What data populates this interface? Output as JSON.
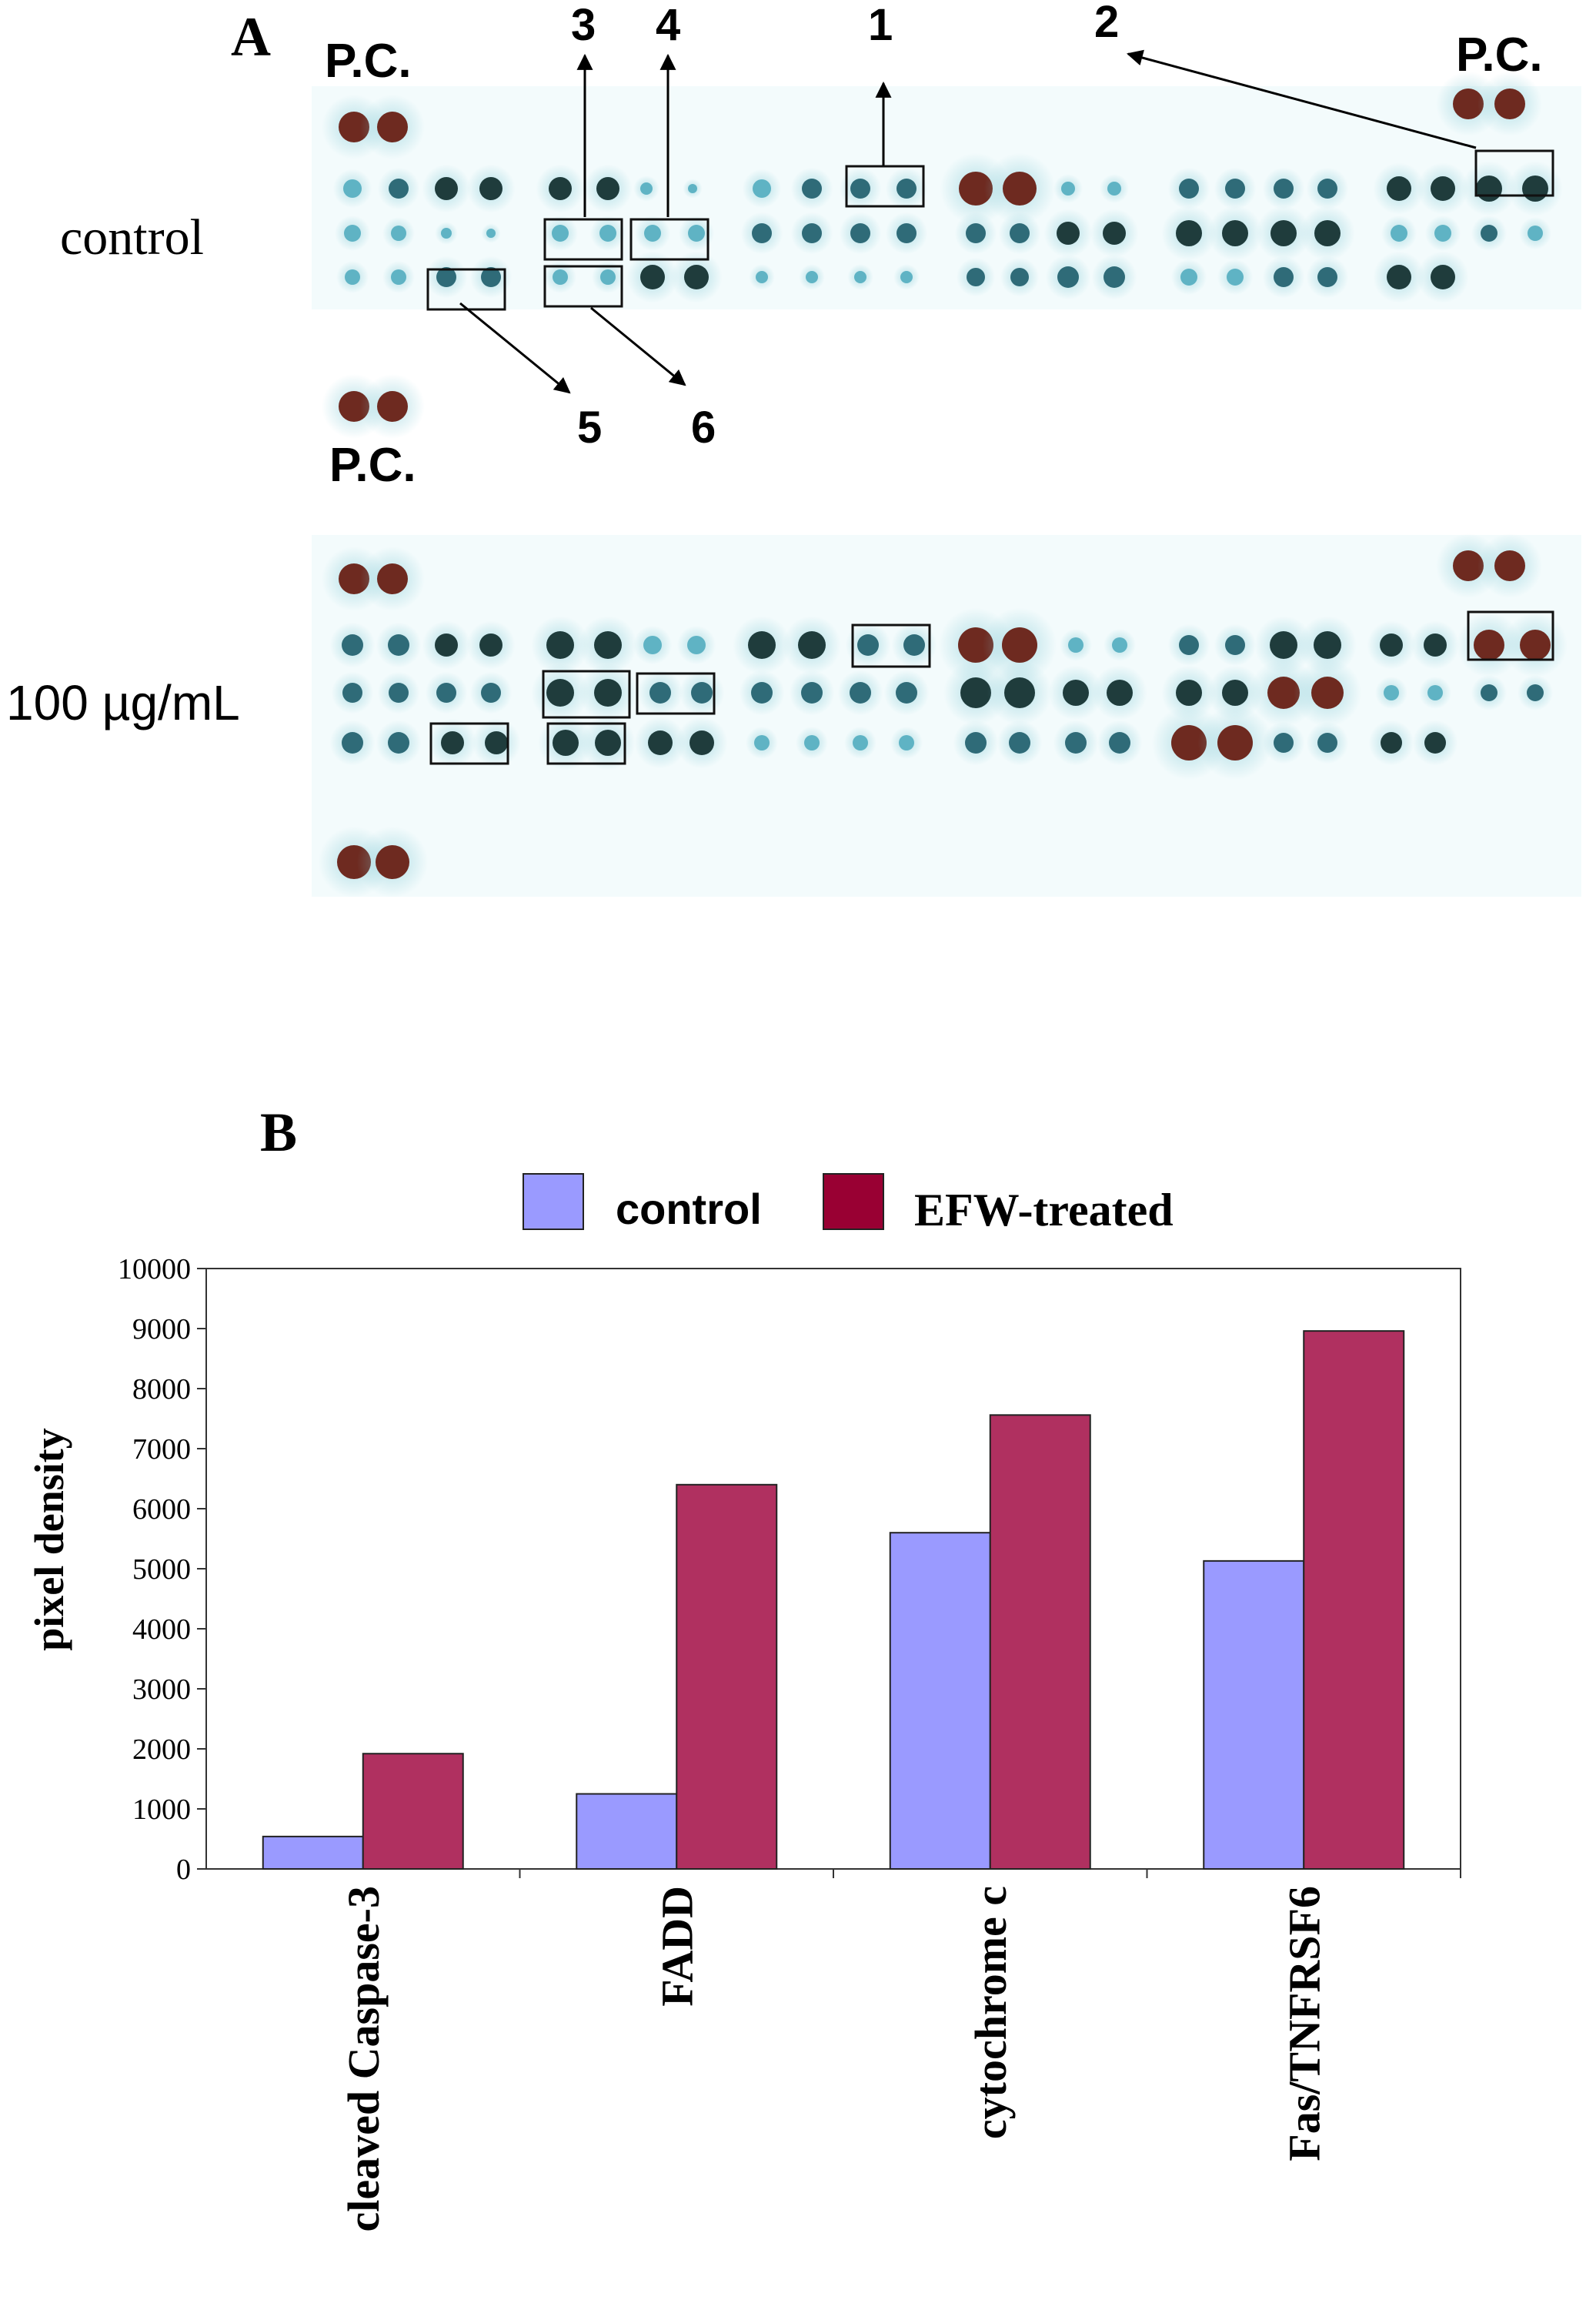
{
  "panel_a": {
    "letter": "A",
    "row_labels": [
      "control",
      "100 µg/mL"
    ],
    "pc_label": "P.C.",
    "callouts": [
      "1",
      "2",
      "3",
      "4",
      "5",
      "6"
    ]
  },
  "chart_data": {
    "type": "bar",
    "panel_letter": "B",
    "categories": [
      "cleaved Caspase-3",
      "FADD",
      "cytochrome c",
      "Fas/TNFRSF6"
    ],
    "series": [
      {
        "name": "control",
        "color": "#9a9aff",
        "values": [
          540,
          1250,
          5600,
          5130
        ]
      },
      {
        "name": "EFW-treated",
        "color": "#b03060",
        "values": [
          1920,
          6400,
          7560,
          8960
        ]
      }
    ],
    "ylabel": "pixel density",
    "xlabel": "",
    "ylim": [
      0,
      10000
    ],
    "yticks": [
      0,
      1000,
      2000,
      3000,
      4000,
      5000,
      6000,
      7000,
      8000,
      9000,
      10000
    ],
    "legend_position": "top",
    "grid": false
  },
  "colors": {
    "control": "#9a9aff",
    "treated": "#b03060",
    "legend_treated_swatch": "#990033",
    "membrane": "#f3fbfc",
    "spot_dark": "#1f3c3c",
    "spot_brown": "#6e2a20",
    "spot_light": "#5fb3c4"
  }
}
